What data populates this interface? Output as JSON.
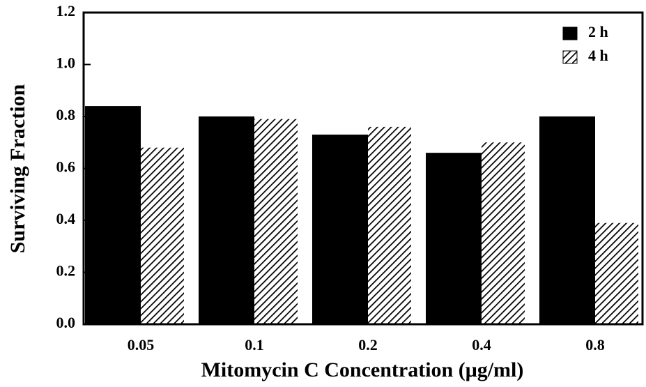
{
  "chart_data": {
    "type": "bar",
    "xlabel": "Mitomycin C Concentration (μg/ml)",
    "ylabel": "Surviving Fraction",
    "categories": [
      "0.05",
      "0.1",
      "0.2",
      "0.4",
      "0.8"
    ],
    "series": [
      {
        "name": "2 h",
        "color": "#000000",
        "hatch": false,
        "values": [
          0.84,
          0.8,
          0.73,
          0.66,
          0.8
        ]
      },
      {
        "name": "4 h",
        "color": "#000000",
        "hatch": true,
        "values": [
          0.68,
          0.79,
          0.76,
          0.7,
          0.39
        ]
      }
    ],
    "ylim": [
      0,
      1.2
    ],
    "yticks": [
      {
        "value": 0,
        "label": "0.0"
      },
      0.2,
      0.4,
      0.6,
      0.8,
      {
        "value": 1,
        "label": "1.0"
      },
      1.2
    ],
    "legend": "upper right"
  }
}
